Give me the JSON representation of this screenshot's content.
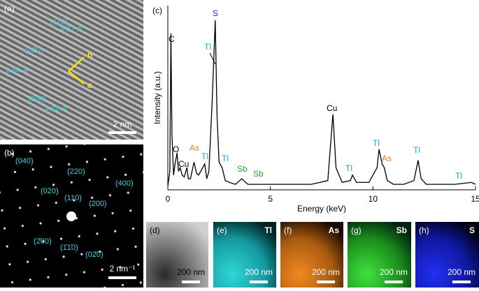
{
  "chart_data": {
    "type": "line",
    "color": "#000000",
    "xlabel": "Energy (keV)",
    "ylabel": "Intensity (a.u.)",
    "xlim": [
      0,
      15
    ],
    "xticks": [
      0,
      5,
      10,
      15
    ],
    "ylim": [
      0,
      100
    ],
    "x": [
      0,
      0.1,
      0.15,
      0.2,
      0.28,
      0.35,
      0.45,
      0.52,
      0.6,
      0.7,
      0.8,
      0.93,
      1.0,
      1.1,
      1.28,
      1.4,
      1.5,
      1.8,
      1.9,
      2.0,
      2.15,
      2.31,
      2.4,
      2.5,
      2.65,
      2.8,
      3.0,
      3.3,
      3.6,
      3.7,
      3.9,
      4.5,
      5,
      6,
      7,
      7.8,
      8.05,
      8.2,
      8.5,
      8.9,
      9.0,
      9.2,
      9.8,
      10.2,
      10.3,
      10.45,
      10.55,
      10.7,
      11,
      11.5,
      12.0,
      12.2,
      12.35,
      12.6,
      13,
      14,
      14.8,
      15
    ],
    "values": [
      2,
      10,
      85,
      30,
      8,
      14,
      20,
      10,
      12,
      8,
      7,
      12,
      6,
      6,
      15,
      9,
      8,
      14,
      6,
      10,
      45,
      92,
      40,
      15,
      12,
      5,
      4,
      3,
      6,
      5,
      3,
      3,
      3,
      3,
      3,
      5,
      41,
      12,
      4,
      5,
      8,
      4,
      4,
      12,
      22,
      14,
      12,
      5,
      3,
      3,
      5,
      16,
      6,
      3,
      3,
      3,
      4,
      3
    ],
    "annotations": [
      "C",
      "S",
      "Tl",
      "Cu",
      "O",
      "Cu",
      "As",
      "Tl",
      "Tl",
      "Sb",
      "Sb",
      "Tl",
      "Tl",
      "As",
      "Tl",
      "Tl"
    ]
  },
  "panels": {
    "a": {
      "label": "(a)",
      "texts": [
        "(11̄0)",
        "4.87 Å",
        "(020)",
        "2.84 Å",
        "(200)",
        "4.22 Å",
        "b",
        "a",
        "2 nm"
      ]
    },
    "b": {
      "label": "(b)",
      "texts": [
        "(040)",
        "(220)",
        "(020)",
        "(110)",
        "(400)",
        "(200)",
        "(2̄00)",
        "(1̄1̄0)",
        "(02̄0)",
        "2 nm⁻¹"
      ]
    },
    "c": {
      "label": "(c)"
    },
    "d": {
      "label": "(d)",
      "scale": "200 nm"
    },
    "e": {
      "label": "(e)",
      "element": "Tl",
      "scale": "200 nm"
    },
    "f": {
      "label": "(f)",
      "element": "As",
      "scale": "200 nm"
    },
    "g": {
      "label": "(g)",
      "element": "Sb",
      "scale": "200 nm"
    },
    "h": {
      "label": "(h)",
      "element": "S",
      "scale": "200 nm"
    }
  }
}
